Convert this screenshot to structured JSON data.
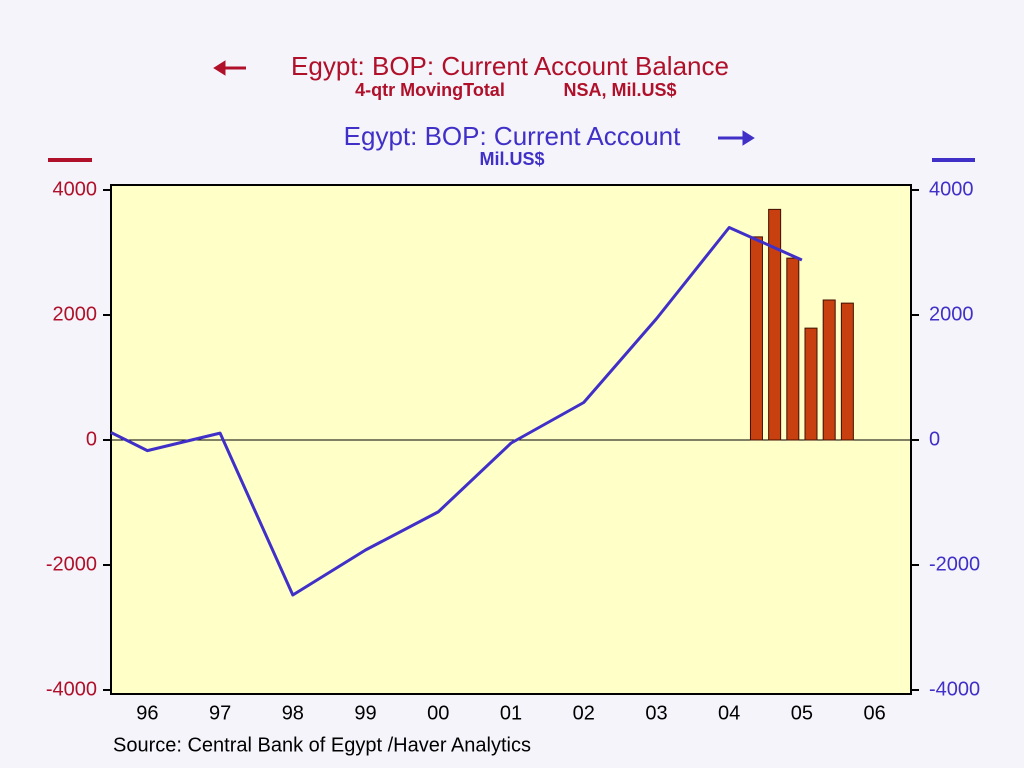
{
  "chart_data": {
    "type": "combo",
    "source": "Source:  Central Bank of Egypt /Haver Analytics",
    "xlim": [
      1996,
      2007
    ],
    "xticks": [
      {
        "value": 1996.5,
        "label": "96"
      },
      {
        "value": 1997.5,
        "label": "97"
      },
      {
        "value": 1998.5,
        "label": "98"
      },
      {
        "value": 1999.5,
        "label": "99"
      },
      {
        "value": 2000.5,
        "label": "00"
      },
      {
        "value": 2001.5,
        "label": "01"
      },
      {
        "value": 2002.5,
        "label": "02"
      },
      {
        "value": 2003.5,
        "label": "03"
      },
      {
        "value": 2004.5,
        "label": "04"
      },
      {
        "value": 2005.5,
        "label": "05"
      },
      {
        "value": 2006.5,
        "label": "06"
      }
    ],
    "ylim": [
      -4000,
      4000
    ],
    "yticks": [
      -4000,
      -2000,
      0,
      2000,
      4000
    ],
    "y2lim": [
      -4000,
      4000
    ],
    "y2ticks": [
      -4000,
      -2000,
      0,
      2000,
      4000
    ],
    "plot_color": "#ffffc8",
    "series": [
      {
        "name": "Egypt: BOP: Current Account Balance",
        "units": [
          "4-qtr MovingTotal",
          "NSA, Mil.US$"
        ],
        "type": "bar",
        "axis": "y",
        "color": "#c84010",
        "title_color": "#b0102a",
        "x": [
          2004.875,
          2005.125,
          2005.375,
          2005.625,
          2005.875,
          2006.125
        ],
        "values": [
          3250,
          3690,
          2910,
          1790,
          2240,
          2190
        ]
      },
      {
        "name": "Egypt: BOP: Current Account",
        "units": [
          "Mil.US$"
        ],
        "type": "line",
        "axis": "y2",
        "color": "#4030c8",
        "title_color": "#4030c8",
        "x": [
          1996.0,
          1996.5,
          1997.5,
          1998.5,
          1999.5,
          2000.5,
          2001.5,
          2002.5,
          2003.5,
          2004.5,
          2005.5
        ],
        "values": [
          120,
          -170,
          110,
          -2480,
          -1760,
          -1150,
          -50,
          600,
          1940,
          3400,
          2880
        ]
      }
    ]
  }
}
